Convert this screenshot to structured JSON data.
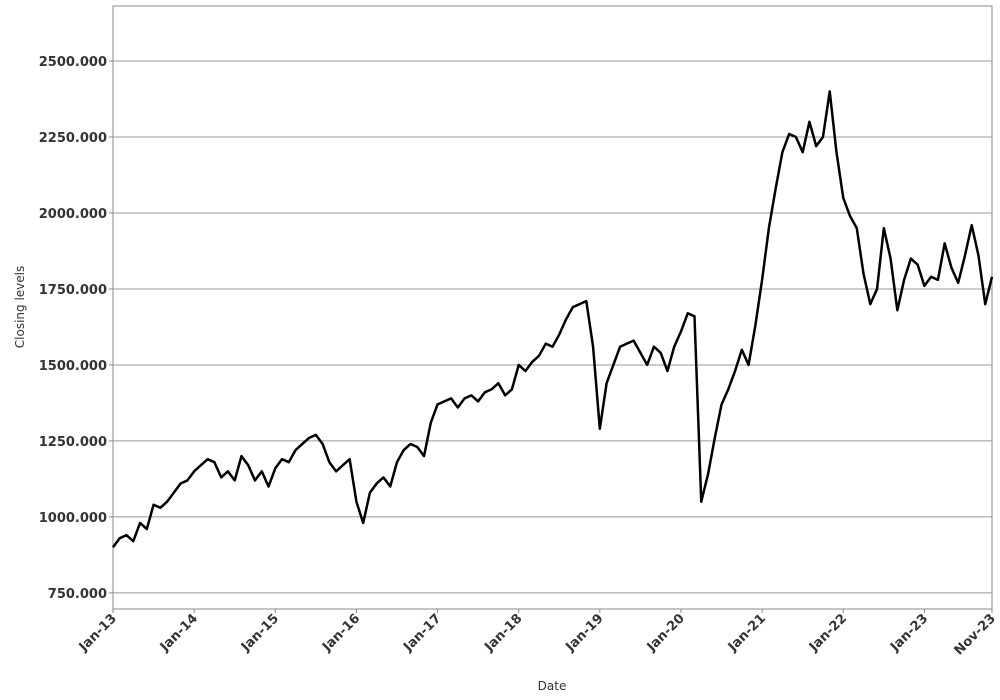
{
  "chart_data": {
    "type": "line",
    "x_label": "Date",
    "y_label": "Closing levels",
    "color": "#000000",
    "grid": true,
    "x": [
      "2013-01",
      "2013-02",
      "2013-03",
      "2013-04",
      "2013-05",
      "2013-06",
      "2013-07",
      "2013-08",
      "2013-09",
      "2013-10",
      "2013-11",
      "2013-12",
      "2014-01",
      "2014-02",
      "2014-03",
      "2014-04",
      "2014-05",
      "2014-06",
      "2014-07",
      "2014-08",
      "2014-09",
      "2014-10",
      "2014-11",
      "2014-12",
      "2015-01",
      "2015-02",
      "2015-03",
      "2015-04",
      "2015-05",
      "2015-06",
      "2015-07",
      "2015-08",
      "2015-09",
      "2015-10",
      "2015-11",
      "2015-12",
      "2016-01",
      "2016-02",
      "2016-03",
      "2016-04",
      "2016-05",
      "2016-06",
      "2016-07",
      "2016-08",
      "2016-09",
      "2016-10",
      "2016-11",
      "2016-12",
      "2017-01",
      "2017-02",
      "2017-03",
      "2017-04",
      "2017-05",
      "2017-06",
      "2017-07",
      "2017-08",
      "2017-09",
      "2017-10",
      "2017-11",
      "2017-12",
      "2018-01",
      "2018-02",
      "2018-03",
      "2018-04",
      "2018-05",
      "2018-06",
      "2018-07",
      "2018-08",
      "2018-09",
      "2018-10",
      "2018-11",
      "2018-12",
      "2019-01",
      "2019-02",
      "2019-03",
      "2019-04",
      "2019-05",
      "2019-06",
      "2019-07",
      "2019-08",
      "2019-09",
      "2019-10",
      "2019-11",
      "2019-12",
      "2020-01",
      "2020-02",
      "2020-03",
      "2020-04",
      "2020-05",
      "2020-06",
      "2020-07",
      "2020-08",
      "2020-09",
      "2020-10",
      "2020-11",
      "2020-12",
      "2021-01",
      "2021-02",
      "2021-03",
      "2021-04",
      "2021-05",
      "2021-06",
      "2021-07",
      "2021-08",
      "2021-09",
      "2021-10",
      "2021-11",
      "2021-12",
      "2022-01",
      "2022-02",
      "2022-03",
      "2022-04",
      "2022-05",
      "2022-06",
      "2022-07",
      "2022-08",
      "2022-09",
      "2022-10",
      "2022-11",
      "2022-12",
      "2023-01",
      "2023-02",
      "2023-03",
      "2023-04",
      "2023-05",
      "2023-06",
      "2023-07",
      "2023-08",
      "2023-09",
      "2023-10",
      "2023-11"
    ],
    "values": [
      900,
      930,
      940,
      920,
      980,
      960,
      1040,
      1030,
      1050,
      1080,
      1110,
      1120,
      1150,
      1170,
      1190,
      1180,
      1130,
      1150,
      1120,
      1200,
      1170,
      1120,
      1150,
      1100,
      1160,
      1190,
      1180,
      1220,
      1240,
      1260,
      1270,
      1240,
      1180,
      1150,
      1170,
      1190,
      1050,
      980,
      1080,
      1110,
      1130,
      1100,
      1180,
      1220,
      1240,
      1230,
      1200,
      1310,
      1370,
      1380,
      1390,
      1360,
      1390,
      1400,
      1380,
      1410,
      1420,
      1440,
      1400,
      1420,
      1500,
      1480,
      1510,
      1530,
      1570,
      1560,
      1600,
      1650,
      1690,
      1700,
      1710,
      1560,
      1290,
      1440,
      1500,
      1560,
      1570,
      1580,
      1540,
      1500,
      1560,
      1540,
      1480,
      1560,
      1610,
      1670,
      1660,
      1050,
      1140,
      1260,
      1370,
      1420,
      1480,
      1550,
      1500,
      1630,
      1780,
      1950,
      2080,
      2200,
      2260,
      2250,
      2200,
      2300,
      2220,
      2250,
      2400,
      2200,
      2050,
      1990,
      1950,
      1800,
      1700,
      1750,
      1950,
      1850,
      1680,
      1780,
      1850,
      1830,
      1760,
      1790,
      1780,
      1900,
      1820,
      1770,
      1860,
      1960,
      1860,
      1700,
      1790
    ],
    "xlim": [
      "2013-01",
      "2023-11"
    ],
    "xticks": [
      {
        "value": "2013-01",
        "label": "Jan-13"
      },
      {
        "value": "2014-01",
        "label": "Jan-14"
      },
      {
        "value": "2015-01",
        "label": "Jan-15"
      },
      {
        "value": "2016-01",
        "label": "Jan-16"
      },
      {
        "value": "2017-01",
        "label": "Jan-17"
      },
      {
        "value": "2018-01",
        "label": "Jan-18"
      },
      {
        "value": "2019-01",
        "label": "Jan-19"
      },
      {
        "value": "2020-01",
        "label": "Jan-20"
      },
      {
        "value": "2021-01",
        "label": "Jan-21"
      },
      {
        "value": "2022-01",
        "label": "Jan-22"
      },
      {
        "value": "2023-01",
        "label": "Jan-23"
      },
      {
        "value": "2023-11",
        "label": "Nov-23"
      }
    ],
    "ylim": [
      697,
      2681
    ],
    "yticks": [
      {
        "value": 750,
        "label": "750.000"
      },
      {
        "value": 1000,
        "label": "1000.000"
      },
      {
        "value": 1250,
        "label": "1250.000"
      },
      {
        "value": 1500,
        "label": "1500.000"
      },
      {
        "value": 1750,
        "label": "1750.000"
      },
      {
        "value": 2000,
        "label": "2000.000"
      },
      {
        "value": 2250,
        "label": "2250.000"
      },
      {
        "value": 2500,
        "label": "2500.000"
      }
    ]
  }
}
